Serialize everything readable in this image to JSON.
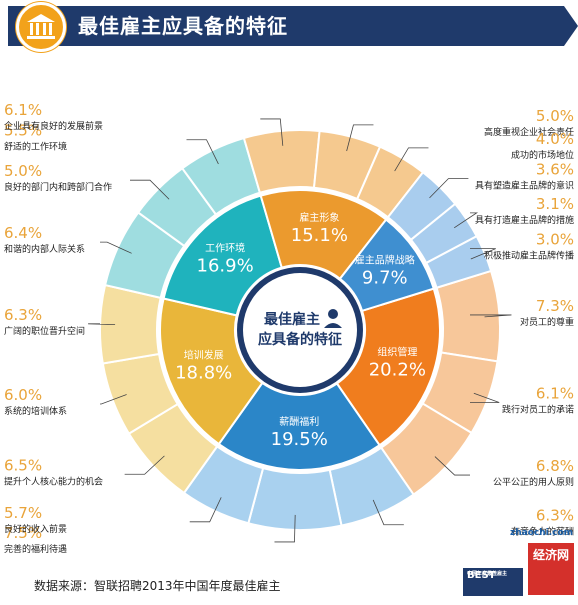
{
  "header": {
    "title": "最佳雇主应具备的特征",
    "icon": "bank-icon"
  },
  "center": {
    "line1": "最佳雇主",
    "line2": "应具备的特征",
    "icon": "person-icon"
  },
  "chart_data": {
    "type": "pie",
    "title": "最佳雇主应具备的特征",
    "inner": [
      {
        "label": "组织管理",
        "value": 20.2,
        "display": "20.2%",
        "color": "#f07d1e"
      },
      {
        "label": "薪酬福利",
        "value": 19.5,
        "display": "19.5%",
        "color": "#2b86c8"
      },
      {
        "label": "培训发展",
        "value": 18.8,
        "display": "18.8%",
        "color": "#e9b63a"
      },
      {
        "label": "工作环境",
        "value": 16.9,
        "display": "16.9%",
        "color": "#1fb3bd"
      },
      {
        "label": "雇主形象",
        "value": 15.1,
        "display": "15.1%",
        "color": "#eb9a2e"
      },
      {
        "label": "雇主品牌战略",
        "value": 9.7,
        "display": "9.7%",
        "color": "#3f8fd0"
      }
    ],
    "outer": [
      {
        "label": "对员工的尊重",
        "value": 7.3,
        "display": "7.3%",
        "group": 0
      },
      {
        "label": "践行对员工的承诺",
        "value": 6.1,
        "display": "6.1%",
        "group": 0
      },
      {
        "label": "公平公正的用人原则",
        "value": 6.8,
        "display": "6.8%",
        "group": 0
      },
      {
        "label": "有竞争力的薪酬",
        "value": 6.3,
        "display": "6.3%",
        "group": 1
      },
      {
        "label": "完善的福利待遇",
        "value": 7.5,
        "display": "7.5%",
        "group": 1
      },
      {
        "label": "良好的收入前景",
        "value": 5.7,
        "display": "5.7%",
        "group": 1
      },
      {
        "label": "提升个人核心能力的机会",
        "value": 6.5,
        "display": "6.5%",
        "group": 2
      },
      {
        "label": "系统的培训体系",
        "value": 6.0,
        "display": "6.0%",
        "group": 2
      },
      {
        "label": "广阔的职位晋升空间",
        "value": 6.3,
        "display": "6.3%",
        "group": 2
      },
      {
        "label": "和谐的内部人际关系",
        "value": 6.4,
        "display": "6.4%",
        "group": 3
      },
      {
        "label": "良好的部门内和跨部门合作",
        "value": 5.0,
        "display": "5.0%",
        "group": 3
      },
      {
        "label": "舒适的工作环境",
        "value": 5.5,
        "display": "5.5%",
        "group": 3
      },
      {
        "label": "企业具有良好的发展前景",
        "value": 6.1,
        "display": "6.1%",
        "group": 4
      },
      {
        "label": "高度重视企业社会责任",
        "value": 5.0,
        "display": "5.0%",
        "group": 4
      },
      {
        "label": "成功的市场地位",
        "value": 4.0,
        "display": "4.0%",
        "group": 4
      },
      {
        "label": "具有塑造雇主品牌的意识",
        "value": 3.6,
        "display": "3.6%",
        "group": 5
      },
      {
        "label": "具有打造雇主品牌的措施",
        "value": 3.1,
        "display": "3.1%",
        "group": 5
      },
      {
        "label": "积极推动雇主品牌传播",
        "value": 3.0,
        "display": "3.0%",
        "group": 5
      }
    ],
    "outer_colors": [
      "#f7c79a",
      "#a9d1ef",
      "#f5dfa0",
      "#9fdde0",
      "#f5c98f",
      "#a9cdee"
    ],
    "legend": "none"
  },
  "footer": {
    "source": "数据来源：智联招聘2013年中国年度最佳雇主",
    "logo_best": "BEST",
    "logo_sub": "中国年度最佳雇主",
    "logo_site": "zhaochi.com",
    "logo_stamp": "经济网"
  },
  "colors": {
    "header_bg": "#1f3a6b",
    "accent": "#f2a21b",
    "center_ring": "#1f3a6b"
  }
}
